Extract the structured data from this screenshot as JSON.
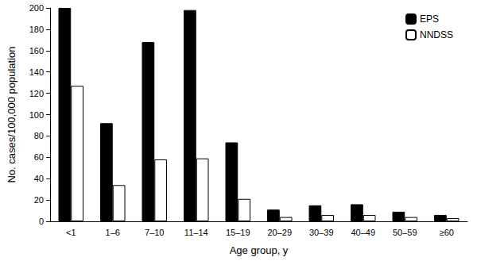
{
  "chart_data": {
    "type": "bar",
    "categories": [
      "<1",
      "1–6",
      "7–10",
      "11–14",
      "15–19",
      "20–29",
      "30–39",
      "40–49",
      "50–59",
      "≥60"
    ],
    "series": [
      {
        "name": "EPS",
        "color": "#000000",
        "values": [
          200,
          92,
          168,
          198,
          74,
          11,
          15,
          16,
          9,
          6
        ]
      },
      {
        "name": "NNDSS",
        "color": "#ffffff",
        "values": [
          127,
          34,
          58,
          59,
          21,
          4,
          6,
          6,
          4,
          3
        ]
      }
    ],
    "x_label": "Age group, y",
    "y_label": "No. cases/100,000 population",
    "ylim": [
      0,
      200
    ],
    "yticks": [
      0,
      20,
      40,
      60,
      80,
      100,
      120,
      140,
      160,
      180,
      200
    ],
    "grid": false,
    "legend": "upper right"
  }
}
